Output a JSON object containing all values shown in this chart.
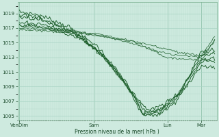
{
  "xlabel": "Pression niveau de la mer( hPa )",
  "ylim": [
    1004.5,
    1020.5
  ],
  "yticks": [
    1005,
    1007,
    1009,
    1011,
    1013,
    1015,
    1017,
    1019
  ],
  "xtick_labels": [
    "VenDim",
    "Sam",
    "Lun",
    "Mar"
  ],
  "xtick_positions": [
    0.0,
    0.38,
    0.76,
    0.93
  ],
  "bg_color": "#ceeadf",
  "plot_bg_color": "#ceeadf",
  "grid_major_color": "#a8d4c4",
  "grid_minor_color": "#b8ddd0",
  "line_color": "#1a5c28",
  "n_points": 150,
  "figwidth": 3.2,
  "figheight": 2.0,
  "dpi": 100
}
